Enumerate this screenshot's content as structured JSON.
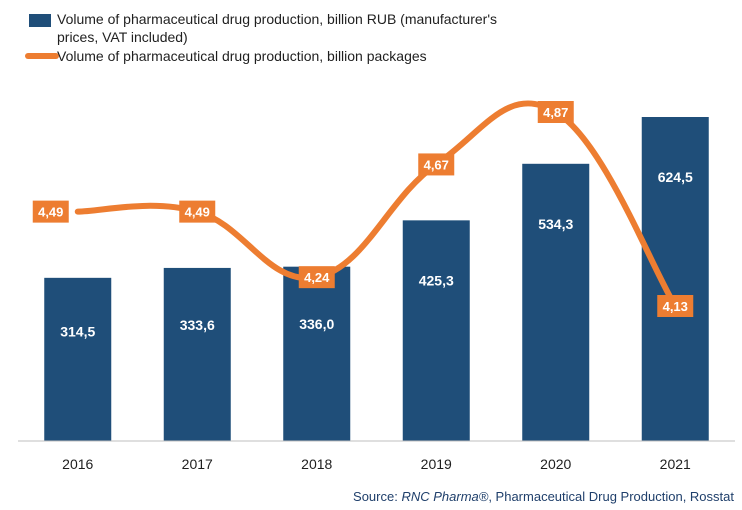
{
  "colors": {
    "bar": "#1f4e79",
    "line": "#ed7d31",
    "axis": "#bfbfbf",
    "text": "#1f1f1f",
    "source": "#1f3f6b"
  },
  "source": {
    "prefix": "Source: ",
    "brand": "RNC Pharma®",
    "rest": ", Pharmaceutical Drug Production, Rosstat"
  },
  "chart_data": {
    "type": "bar",
    "categories": [
      "2016",
      "2017",
      "2018",
      "2019",
      "2020",
      "2021"
    ],
    "series": [
      {
        "name": "Volume of pharmaceutical drug production, billion RUB (manufacturer's prices, VAT included)",
        "legend_lines": [
          "Volume of pharmaceutical drug production, billion RUB (manufacturer's",
          "prices, VAT included)"
        ],
        "type": "bar",
        "values": [
          314.5,
          333.6,
          336.0,
          425.3,
          534.3,
          624.5
        ],
        "labels": [
          "314,5",
          "333,6",
          "336,0",
          "425,3",
          "534,3",
          "624,5"
        ]
      },
      {
        "name": "Volume of pharmaceutical drug production, billion packages",
        "legend_lines": [
          "Volume of pharmaceutical drug production, billion packages"
        ],
        "type": "line",
        "smooth": true,
        "values": [
          4.49,
          4.49,
          4.24,
          4.67,
          4.87,
          4.13
        ],
        "labels": [
          "4,49",
          "4,49",
          "4,24",
          "4,67",
          "4,87",
          "4,13"
        ]
      }
    ],
    "bar_axis_range": [
      0,
      680
    ],
    "line_axis_range": [
      3.95,
      4.95
    ],
    "grid": false,
    "legend_position": "top-left"
  }
}
